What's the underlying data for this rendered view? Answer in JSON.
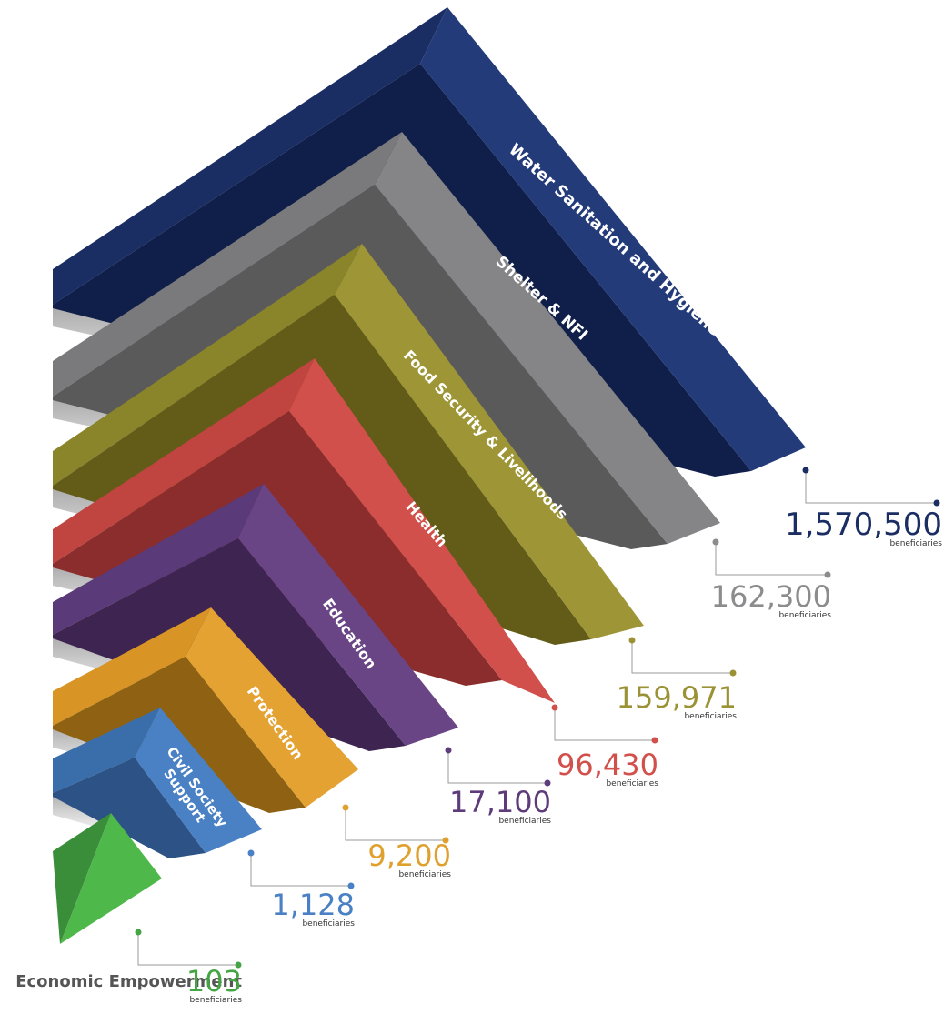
{
  "chart_data": {
    "type": "bar",
    "title": "",
    "unit_label": "beneficiaries",
    "series": [
      {
        "name": "Water Sanitation and Hygiene",
        "value": 1570500,
        "display": "1,570,500",
        "color": "#1b2e64",
        "light": "#243b7a",
        "dark": "#101f4a",
        "valueColor": "#1b2e64"
      },
      {
        "name": "Shelter & NFI",
        "value": 162300,
        "display": "162,300",
        "color": "#7a7a7c",
        "light": "#858587",
        "dark": "#5a5a5a",
        "valueColor": "#8c8c8e"
      },
      {
        "name": "Food Security & Livelihoods",
        "value": 159971,
        "display": "159,971",
        "color": "#8a842a",
        "light": "#9e9636",
        "dark": "#625c18",
        "valueColor": "#9a9234"
      },
      {
        "name": "Health",
        "value": 96430,
        "display": "96,430",
        "color": "#c0443f",
        "light": "#d2504c",
        "dark": "#8a2d2c",
        "valueColor": "#d2504c"
      },
      {
        "name": "Education",
        "value": 17100,
        "display": "17,100",
        "color": "#5a3a78",
        "light": "#6a4586",
        "dark": "#3e2450",
        "valueColor": "#5e3c7a"
      },
      {
        "name": "Protection",
        "value": 9200,
        "display": "9,200",
        "color": "#d89424",
        "light": "#e4a232",
        "dark": "#8e6212",
        "valueColor": "#e0a02e"
      },
      {
        "name": "Civil Society Support",
        "value": 1128,
        "display": "1,128",
        "color": "#3a6eaa",
        "light": "#4a80c4",
        "dark": "#2c5286",
        "valueColor": "#4a80c4"
      },
      {
        "name": "Economic Empowerment",
        "value": 103,
        "display": "103",
        "color": "#45a545",
        "light": "#4fb84b",
        "dark": "#3a8e3a",
        "valueColor": "#45a545"
      }
    ]
  }
}
